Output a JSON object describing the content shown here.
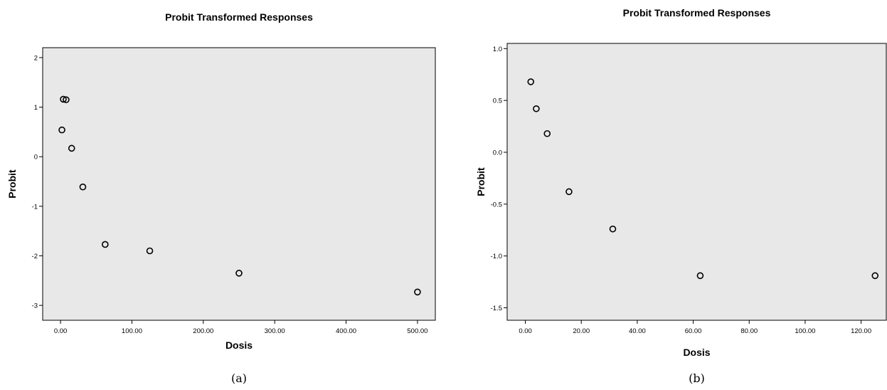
{
  "chart_data": [
    {
      "type": "scatter",
      "title": "Probit Transformed Responses",
      "xlabel": "Dosis",
      "ylabel": "Probit",
      "caption": "(a)",
      "xlim": [
        -25,
        525
      ],
      "ylim": [
        -3.3,
        2.2
      ],
      "xticks": [
        0,
        100,
        200,
        300,
        400,
        500
      ],
      "xtick_labels": [
        "0.00",
        "100.00",
        "200.00",
        "300.00",
        "400.00",
        "500.00"
      ],
      "yticks": [
        2,
        1,
        0,
        -1,
        -2,
        -3
      ],
      "ytick_labels": [
        "2",
        "1",
        "0",
        "-1",
        "-2",
        "-3"
      ],
      "grid": false,
      "background": "#e8e8e8",
      "points": [
        {
          "x": 1.95,
          "y": 0.54
        },
        {
          "x": 3.9,
          "y": 1.16
        },
        {
          "x": 7.8,
          "y": 1.15
        },
        {
          "x": 15.6,
          "y": 0.17
        },
        {
          "x": 31.25,
          "y": -0.61
        },
        {
          "x": 62.5,
          "y": -1.77
        },
        {
          "x": 125,
          "y": -1.9
        },
        {
          "x": 250,
          "y": -2.35
        },
        {
          "x": 500,
          "y": -2.73
        }
      ]
    },
    {
      "type": "scatter",
      "title": "Probit Transformed Responses",
      "xlabel": "Dosis",
      "ylabel": "Probit",
      "caption": "(b)",
      "xlim": [
        -6.5,
        129
      ],
      "ylim": [
        -1.62,
        1.05
      ],
      "xticks": [
        0,
        20,
        40,
        60,
        80,
        100,
        120
      ],
      "xtick_labels": [
        "0.00",
        "20.00",
        "40.00",
        "60.00",
        "80.00",
        "100.00",
        "120.00"
      ],
      "yticks": [
        1.0,
        0.5,
        0.0,
        -0.5,
        -1.0,
        -1.5
      ],
      "ytick_labels": [
        "1.0",
        "0.5",
        "0.0",
        "-0.5",
        "-1.0",
        "-1.5"
      ],
      "grid": false,
      "background": "#e8e8e8",
      "points": [
        {
          "x": 1.95,
          "y": 0.68
        },
        {
          "x": 3.9,
          "y": 0.42
        },
        {
          "x": 7.8,
          "y": 0.18
        },
        {
          "x": 15.6,
          "y": -0.38
        },
        {
          "x": 31.25,
          "y": -0.74
        },
        {
          "x": 62.5,
          "y": -1.19
        },
        {
          "x": 125,
          "y": -1.19
        }
      ]
    }
  ]
}
